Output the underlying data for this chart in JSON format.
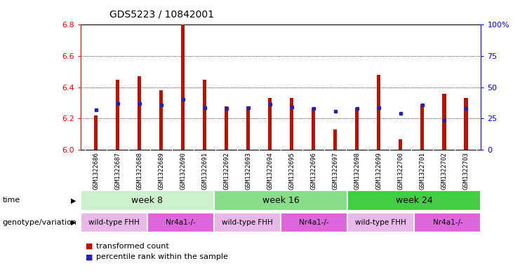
{
  "title": "GDS5223 / 10842001",
  "samples": [
    "GSM1322686",
    "GSM1322687",
    "GSM1322688",
    "GSM1322689",
    "GSM1322690",
    "GSM1322691",
    "GSM1322692",
    "GSM1322693",
    "GSM1322694",
    "GSM1322695",
    "GSM1322696",
    "GSM1322697",
    "GSM1322698",
    "GSM1322699",
    "GSM1322700",
    "GSM1322701",
    "GSM1322702",
    "GSM1322703"
  ],
  "red_values": [
    6.22,
    6.45,
    6.47,
    6.38,
    6.8,
    6.45,
    6.28,
    6.28,
    6.33,
    6.33,
    6.27,
    6.13,
    6.27,
    6.48,
    6.07,
    6.29,
    6.36,
    6.33
  ],
  "blue_values": [
    6.255,
    6.295,
    6.295,
    6.285,
    6.325,
    6.27,
    6.265,
    6.27,
    6.29,
    6.275,
    6.265,
    6.245,
    6.265,
    6.27,
    6.235,
    6.285,
    6.19,
    6.265
  ],
  "ylim_left": [
    6.0,
    6.8
  ],
  "ylim_right": [
    0,
    100
  ],
  "yticks_left": [
    6.0,
    6.2,
    6.4,
    6.6,
    6.8
  ],
  "yticks_right": [
    0,
    25,
    50,
    75,
    100
  ],
  "ytick_right_labels": [
    "0",
    "25",
    "50",
    "75",
    "100%"
  ],
  "time_groups": [
    {
      "label": "week 8",
      "start": 0,
      "end": 6,
      "color": "#ccf0cc"
    },
    {
      "label": "week 16",
      "start": 6,
      "end": 12,
      "color": "#88dd88"
    },
    {
      "label": "week 24",
      "start": 12,
      "end": 18,
      "color": "#44cc44"
    }
  ],
  "geno_groups": [
    {
      "label": "wild-type FHH",
      "start": 0,
      "end": 3,
      "color": "#e8b8e8"
    },
    {
      "label": "Nr4a1-/-",
      "start": 3,
      "end": 6,
      "color": "#dd66dd"
    },
    {
      "label": "wild-type FHH",
      "start": 6,
      "end": 9,
      "color": "#e8b8e8"
    },
    {
      "label": "Nr4a1-/-",
      "start": 9,
      "end": 12,
      "color": "#dd66dd"
    },
    {
      "label": "wild-type FHH",
      "start": 12,
      "end": 15,
      "color": "#e8b8e8"
    },
    {
      "label": "Nr4a1-/-",
      "start": 15,
      "end": 18,
      "color": "#dd66dd"
    }
  ],
  "bar_color": "#bb1100",
  "blue_color": "#2222bb",
  "baseline": 6.0,
  "bar_width": 0.18,
  "background_color": "#ffffff",
  "xtick_bg": "#cccccc",
  "label_time": "time",
  "label_geno": "genotype/variation",
  "legend_red": "transformed count",
  "legend_blue": "percentile rank within the sample"
}
